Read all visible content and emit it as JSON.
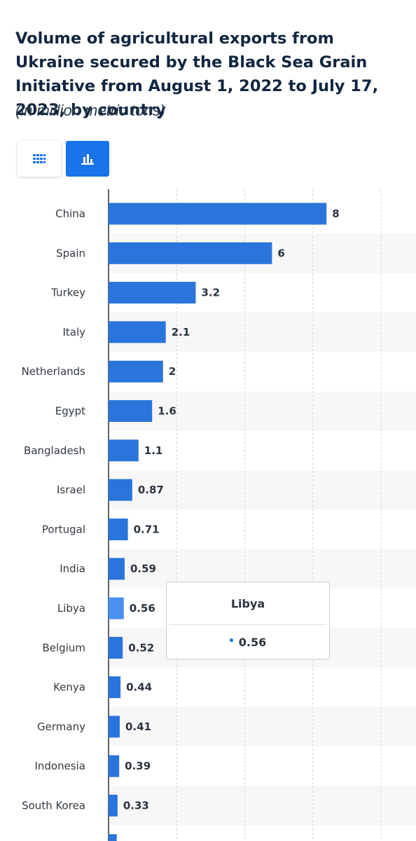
{
  "header": {
    "title": "Volume of agricultural exports from Ukraine secured by the Black Sea Grain Initiative from August 1, 2022 to July 17, 2023, by country",
    "subtitle": "(in million metric tons)"
  },
  "toolbar": {
    "table_view_icon": "grid-icon",
    "chart_view_icon": "bar-chart-icon"
  },
  "colors": {
    "bar": "#2a74dc",
    "bar_highlight": "#4a90f0",
    "button_active": "#1a73e8"
  },
  "tooltip": {
    "title": "Libya",
    "value": "0.56"
  },
  "chart_data": {
    "type": "bar",
    "orientation": "horizontal",
    "title": "Volume of agricultural exports from Ukraine secured by the Black Sea Grain Initiative from August 1, 2022 to July 17, 2023, by country",
    "subtitle": "(in million metric tons)",
    "categories": [
      "China",
      "Spain",
      "Turkey",
      "Italy",
      "Netherlands",
      "Egypt",
      "Bangladesh",
      "Israel",
      "Portugal",
      "India",
      "Libya",
      "Belgium",
      "Kenya",
      "Germany",
      "Indonesia",
      "South Korea"
    ],
    "values": [
      8,
      6,
      3.2,
      2.1,
      2,
      1.6,
      1.1,
      0.87,
      0.71,
      0.59,
      0.56,
      0.52,
      0.44,
      0.41,
      0.39,
      0.33
    ],
    "value_labels": [
      "8",
      "6",
      "3.2",
      "2.1",
      "2",
      "1.6",
      "1.1",
      "0.87",
      "0.71",
      "0.59",
      "0.56",
      "0.52",
      "0.44",
      "0.41",
      "0.39",
      "0.33"
    ],
    "highlighted": "Libya",
    "xlim": [
      0,
      10
    ],
    "grid": true
  }
}
